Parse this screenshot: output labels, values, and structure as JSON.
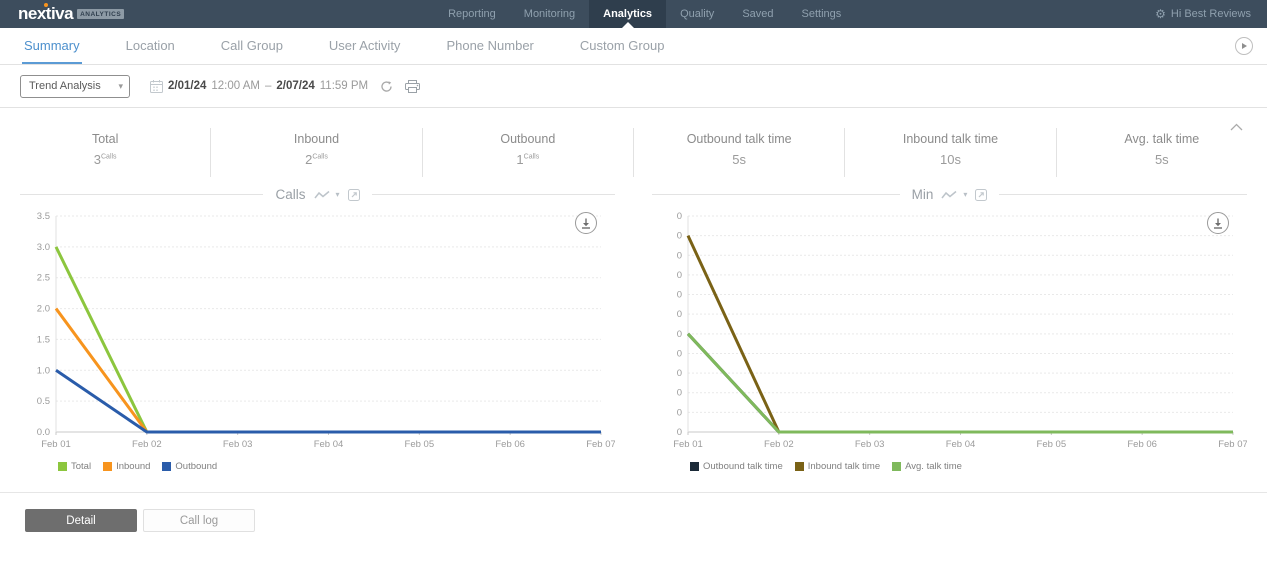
{
  "colors": {
    "navbar": "#3d4d5d",
    "navbar_active": "#2f3e4d",
    "accent_blue": "#4d90cd",
    "brand_orange": "#f7941e"
  },
  "navbar": {
    "logo": {
      "text": "nextiva",
      "badge": "ANALYTICS"
    },
    "items": [
      {
        "label": "Reporting",
        "active": false
      },
      {
        "label": "Monitoring",
        "active": false
      },
      {
        "label": "Analytics",
        "active": true
      },
      {
        "label": "Quality",
        "active": false
      },
      {
        "label": "Saved",
        "active": false
      },
      {
        "label": "Settings",
        "active": false
      }
    ],
    "user": "Hi Best Reviews"
  },
  "tabs": [
    {
      "label": "Summary",
      "active": true
    },
    {
      "label": "Location",
      "active": false
    },
    {
      "label": "Call Group",
      "active": false
    },
    {
      "label": "User Activity",
      "active": false
    },
    {
      "label": "Phone Number",
      "active": false
    },
    {
      "label": "Custom Group",
      "active": false
    }
  ],
  "toolbar": {
    "report_type": "Trend Analysis",
    "date_start": "2/01/24",
    "time_start": "12:00 AM",
    "range_separator": "–",
    "date_end": "2/07/24",
    "time_end": "11:59 PM"
  },
  "stats": [
    {
      "label": "Total",
      "value": "3",
      "unit": "Calls"
    },
    {
      "label": "Inbound",
      "value": "2",
      "unit": "Calls"
    },
    {
      "label": "Outbound",
      "value": "1",
      "unit": "Calls"
    },
    {
      "label": "Outbound talk time",
      "value": "5s",
      "unit": ""
    },
    {
      "label": "Inbound talk time",
      "value": "10s",
      "unit": ""
    },
    {
      "label": "Avg. talk time",
      "value": "5s",
      "unit": ""
    }
  ],
  "chart_data": [
    {
      "type": "line",
      "title": "Calls",
      "x": [
        "Feb 01",
        "Feb 02",
        "Feb 03",
        "Feb 04",
        "Feb 05",
        "Feb 06",
        "Feb 07"
      ],
      "series": [
        {
          "name": "Total",
          "color": "#8cc63e",
          "values": [
            3,
            0,
            0,
            0,
            0,
            0,
            0
          ]
        },
        {
          "name": "Inbound",
          "color": "#f7941e",
          "values": [
            2,
            0,
            0,
            0,
            0,
            0,
            0
          ]
        },
        {
          "name": "Outbound",
          "color": "#2a5caa",
          "values": [
            1,
            0,
            0,
            0,
            0,
            0,
            0
          ]
        }
      ],
      "ylim": [
        0,
        3.5
      ],
      "ytick_labels": [
        "0.0",
        "0.5",
        "1.0",
        "1.5",
        "2.0",
        "2.5",
        "3.0",
        "3.5"
      ],
      "grid": true,
      "legend_position": "bottom-left"
    },
    {
      "type": "line",
      "title": "Min",
      "x": [
        "Feb 01",
        "Feb 02",
        "Feb 03",
        "Feb 04",
        "Feb 05",
        "Feb 06",
        "Feb 07"
      ],
      "series": [
        {
          "name": "Outbound talk time",
          "color": "#1b2a38",
          "values": [
            5,
            0,
            0,
            0,
            0,
            0,
            0
          ]
        },
        {
          "name": "Inbound talk time",
          "color": "#7a6216",
          "values": [
            10,
            0,
            0,
            0,
            0,
            0,
            0
          ]
        },
        {
          "name": "Avg. talk time",
          "color": "#7fb95c",
          "values": [
            5,
            0,
            0,
            0,
            0,
            0,
            0
          ]
        }
      ],
      "ylim": [
        0,
        11
      ],
      "ytick_labels": [
        "0",
        "0",
        "0",
        "0",
        "0",
        "0",
        "0",
        "0",
        "0",
        "0",
        "0",
        "0"
      ],
      "grid": true,
      "legend_position": "bottom-left"
    }
  ],
  "footer": {
    "detail_label": "Detail",
    "call_log_label": "Call log"
  }
}
